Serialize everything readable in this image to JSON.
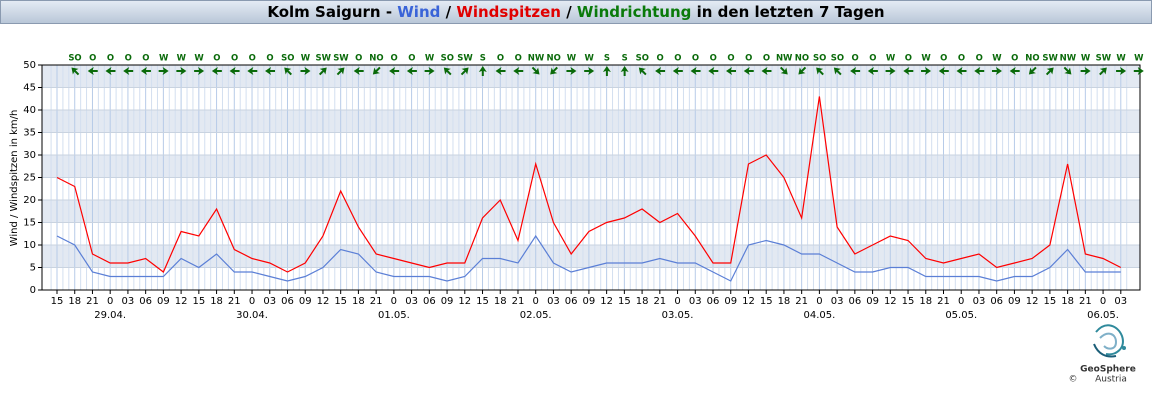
{
  "chart_data": {
    "type": "line",
    "title_parts": [
      "Kolm Saigurn - ",
      "Wind",
      " / ",
      "Windspitzen",
      " / ",
      "Windrichtung",
      " in den letzten 7 Tagen"
    ],
    "y_label": "Wind / Windspitzen in km/h",
    "categories": [
      "15",
      "18",
      "21",
      "0",
      "03",
      "06",
      "09",
      "12",
      "15",
      "18",
      "21",
      "0",
      "03",
      "06",
      "09",
      "12",
      "15",
      "18",
      "21",
      "0",
      "03",
      "06",
      "09",
      "12",
      "15",
      "18",
      "21",
      "0",
      "03",
      "06",
      "09",
      "12",
      "15",
      "18",
      "21",
      "0",
      "03",
      "06",
      "09",
      "12",
      "15",
      "18",
      "21",
      "0",
      "03",
      "06",
      "09",
      "12",
      "15",
      "18",
      "21",
      "0",
      "03",
      "06",
      "09",
      "12",
      "15",
      "18",
      "21",
      "0",
      "03"
    ],
    "date_labels": [
      null,
      null,
      null,
      "29.04.",
      null,
      null,
      null,
      null,
      null,
      null,
      null,
      "30.04.",
      null,
      null,
      null,
      null,
      null,
      null,
      null,
      "01.05.",
      null,
      null,
      null,
      null,
      null,
      null,
      null,
      "02.05.",
      null,
      null,
      null,
      null,
      null,
      null,
      null,
      "03.05.",
      null,
      null,
      null,
      null,
      null,
      null,
      null,
      "04.05.",
      null,
      null,
      null,
      null,
      null,
      null,
      null,
      "05.05.",
      null,
      null,
      null,
      null,
      null,
      null,
      null,
      "06.05.",
      null
    ],
    "directions": [
      "SO",
      "O",
      "O",
      "O",
      "O",
      "W",
      "W",
      "W",
      "O",
      "O",
      "O",
      "O",
      "SO",
      "W",
      "SW",
      "SW",
      "O",
      "NO",
      "O",
      "O",
      "W",
      "SO",
      "SW",
      "S",
      "O",
      "O",
      "NW",
      "NO",
      "W",
      "W",
      "S",
      "S",
      "SO",
      "O",
      "O",
      "O",
      "O",
      "O",
      "O",
      "O",
      "NW",
      "NO",
      "SO",
      "SO",
      "O",
      "O",
      "W",
      "O",
      "W",
      "O",
      "O",
      "O",
      "W",
      "O",
      "NO",
      "SW",
      "NW",
      "W",
      "SW",
      "W",
      "W"
    ],
    "series": [
      {
        "name": "Wind",
        "color": "#5b7fd6",
        "values": [
          12,
          10,
          4,
          3,
          3,
          3,
          3,
          7,
          5,
          8,
          4,
          4,
          3,
          2,
          3,
          5,
          9,
          8,
          4,
          3,
          3,
          3,
          2,
          3,
          7,
          7,
          6,
          12,
          6,
          4,
          5,
          6,
          6,
          6,
          7,
          6,
          6,
          4,
          2,
          10,
          11,
          10,
          8,
          8,
          6,
          4,
          4,
          5,
          5,
          3,
          3,
          3,
          3,
          2,
          3,
          3,
          5,
          9,
          4,
          4,
          4
        ]
      },
      {
        "name": "Windspitzen",
        "color": "#ff0000",
        "values": [
          25,
          23,
          8,
          6,
          6,
          7,
          4,
          13,
          12,
          18,
          9,
          7,
          6,
          4,
          6,
          12,
          22,
          14,
          8,
          7,
          6,
          5,
          6,
          6,
          16,
          20,
          11,
          28,
          15,
          8,
          13,
          15,
          16,
          18,
          15,
          17,
          12,
          6,
          6,
          28,
          30,
          25,
          16,
          43,
          14,
          8,
          10,
          12,
          11,
          7,
          6,
          7,
          8,
          5,
          6,
          7,
          10,
          28,
          8,
          7,
          5
        ]
      }
    ],
    "ylim": [
      0,
      50
    ],
    "yticks": [
      0,
      5,
      10,
      15,
      20,
      25,
      30,
      35,
      40,
      45,
      50
    ],
    "grid": true
  },
  "logo": {
    "line1": "GeoSphere",
    "line2": "Austria",
    "copyright": "©"
  }
}
